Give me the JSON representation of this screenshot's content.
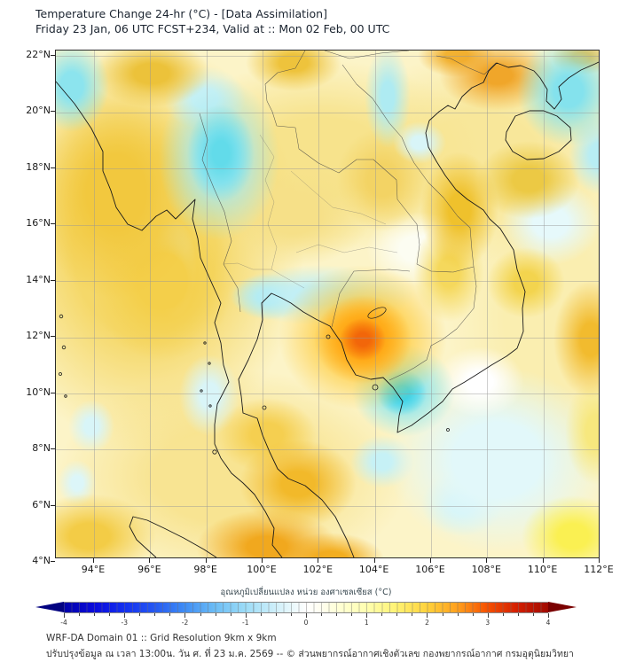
{
  "header": {
    "title": "Temperature Change 24-hr (°C) - [Data Assimilation]",
    "subtitle": "Friday 23 Jan, 06 UTC FCST+234, Valid at :: Mon 02 Feb, 00 UTC"
  },
  "map": {
    "y_axis_labels": [
      "22°N",
      "20°N",
      "18°N",
      "16°N",
      "14°N",
      "12°N",
      "10°N",
      "8°N",
      "6°N",
      "4°N"
    ],
    "x_axis_labels": [
      "94°E",
      "96°E",
      "98°E",
      "100°E",
      "102°E",
      "104°E",
      "106°E",
      "108°E",
      "110°E",
      "112°E"
    ]
  },
  "colorbar": {
    "title": "อุณหภูมิเปลี่ยนแปลง หน่วย องศาเซลเซียส (°C)",
    "tick_labels": [
      "-4",
      "-3",
      "-2",
      "-1",
      "0",
      "1",
      "2",
      "3",
      "4"
    ],
    "left_arrow_color": "#020280",
    "right_arrow_color": "#7a0000",
    "stops": [
      [
        0,
        "#0202a8"
      ],
      [
        6.25,
        "#0a0adc"
      ],
      [
        12.5,
        "#1430f0"
      ],
      [
        18.75,
        "#2558f2"
      ],
      [
        25,
        "#3f8df5"
      ],
      [
        31.25,
        "#6cbdf5"
      ],
      [
        37.5,
        "#9cdcf7"
      ],
      [
        43.75,
        "#cfeffa"
      ],
      [
        47,
        "#e8f8fc"
      ],
      [
        50,
        "#ffffff"
      ],
      [
        53,
        "#fffef0"
      ],
      [
        56.25,
        "#ffffd8"
      ],
      [
        62.5,
        "#ffffb0"
      ],
      [
        68.75,
        "#fff272"
      ],
      [
        75,
        "#ffd23c"
      ],
      [
        81.25,
        "#ffa01e"
      ],
      [
        87.5,
        "#f55000"
      ],
      [
        93.75,
        "#d21e00"
      ],
      [
        100,
        "#a00a00"
      ]
    ]
  },
  "footer": {
    "line1": "WRF-DA Domain 01 :: Grid Resolution 9km x 9km",
    "line2": "ปรับปรุงข้อมูล ณ เวลา 13:00น. วัน ศ. ที่ 23 ม.ค. 2569 -- © ส่วนพยากรณ์อากาศเชิงตัวเลข กองพยากรณ์อากาศ กรมอุตุนิยมวิทยา"
  },
  "field": {
    "base_color": "#fcf4c8",
    "blobs": [
      [
        346,
        326,
        26,
        24,
        "#f2660a",
        30
      ],
      [
        346,
        326,
        55,
        50,
        "#ff9e0e",
        25
      ],
      [
        346,
        324,
        95,
        82,
        "#ffc832",
        30
      ],
      [
        390,
        386,
        28,
        26,
        "#3ed2e6",
        30
      ],
      [
        392,
        384,
        58,
        52,
        "#8ce6ef",
        30
      ],
      [
        186,
        116,
        38,
        55,
        "#62dbea",
        25
      ],
      [
        184,
        122,
        68,
        92,
        "#a5e9f1",
        30
      ],
      [
        18,
        40,
        42,
        52,
        "#8ce4ee",
        30
      ],
      [
        578,
        46,
        58,
        62,
        "#84e2ed",
        28
      ],
      [
        612,
        118,
        34,
        44,
        "#b8edf4",
        30
      ],
      [
        374,
        52,
        26,
        58,
        "#aeebf2",
        28
      ],
      [
        410,
        104,
        30,
        24,
        "#d8f5f8",
        30
      ],
      [
        498,
        28,
        66,
        40,
        "#f0a62a",
        25
      ],
      [
        452,
        6,
        44,
        24,
        "#f2b232",
        30
      ],
      [
        593,
        8,
        34,
        20,
        "#eeb93c",
        30
      ],
      [
        533,
        146,
        58,
        44,
        "#ecc944",
        30
      ],
      [
        455,
        180,
        44,
        66,
        "#efc12c",
        28
      ],
      [
        443,
        250,
        40,
        56,
        "#f5d85c",
        30
      ],
      [
        530,
        262,
        44,
        40,
        "#f3d44e",
        30
      ],
      [
        603,
        326,
        42,
        66,
        "#f2bb2e",
        28
      ],
      [
        268,
        14,
        54,
        32,
        "#eec33c",
        30
      ],
      [
        108,
        26,
        66,
        38,
        "#ecc23a",
        30
      ],
      [
        68,
        160,
        95,
        120,
        "#f2c83e",
        35
      ],
      [
        120,
        260,
        80,
        90,
        "#f4cf4a",
        35
      ],
      [
        273,
        489,
        66,
        50,
        "#f2b92a",
        28
      ],
      [
        238,
        560,
        80,
        42,
        "#f1a81e",
        28
      ],
      [
        310,
        574,
        60,
        30,
        "#f3ae20",
        30
      ],
      [
        238,
        434,
        56,
        42,
        "#f5cf50",
        32
      ],
      [
        38,
        548,
        75,
        48,
        "#f3cc46",
        30
      ],
      [
        583,
        548,
        58,
        46,
        "#faf052",
        30
      ],
      [
        608,
        430,
        34,
        60,
        "#f7e87e",
        30
      ],
      [
        268,
        186,
        88,
        58,
        "#f6e088",
        35
      ],
      [
        368,
        146,
        52,
        58,
        "#f3d364",
        32
      ],
      [
        408,
        224,
        58,
        42,
        "#fcfdf2",
        35
      ],
      [
        478,
        374,
        50,
        40,
        "#ffffff",
        30
      ],
      [
        173,
        389,
        34,
        46,
        "#d9f5f8",
        30
      ],
      [
        298,
        276,
        105,
        34,
        "#c2eff5",
        30
      ],
      [
        240,
        278,
        42,
        26,
        "#a8eaf1",
        30
      ],
      [
        498,
        462,
        125,
        105,
        "#e2f8fa",
        40
      ],
      [
        368,
        464,
        36,
        30,
        "#c6f1f6",
        30
      ],
      [
        458,
        512,
        46,
        36,
        "#cdf3f7",
        30
      ],
      [
        558,
        194,
        56,
        48,
        "#e6f9fb",
        35
      ],
      [
        40,
        424,
        26,
        30,
        "#d8f5f8",
        30
      ],
      [
        24,
        488,
        22,
        26,
        "#dcf6f9",
        30
      ],
      [
        133,
        246,
        26,
        56,
        "#dff6f9",
        28
      ],
      [
        168,
        54,
        46,
        36,
        "#ccf2f6",
        30
      ],
      [
        100,
        220,
        180,
        230,
        "#f5d869",
        45
      ],
      [
        300,
        120,
        180,
        110,
        "#f7e38c",
        40
      ],
      [
        480,
        120,
        160,
        120,
        "#f8e79a",
        40
      ],
      [
        200,
        480,
        200,
        120,
        "#f8e492",
        45
      ],
      [
        560,
        300,
        120,
        200,
        "#faeeb0",
        45
      ]
    ]
  }
}
